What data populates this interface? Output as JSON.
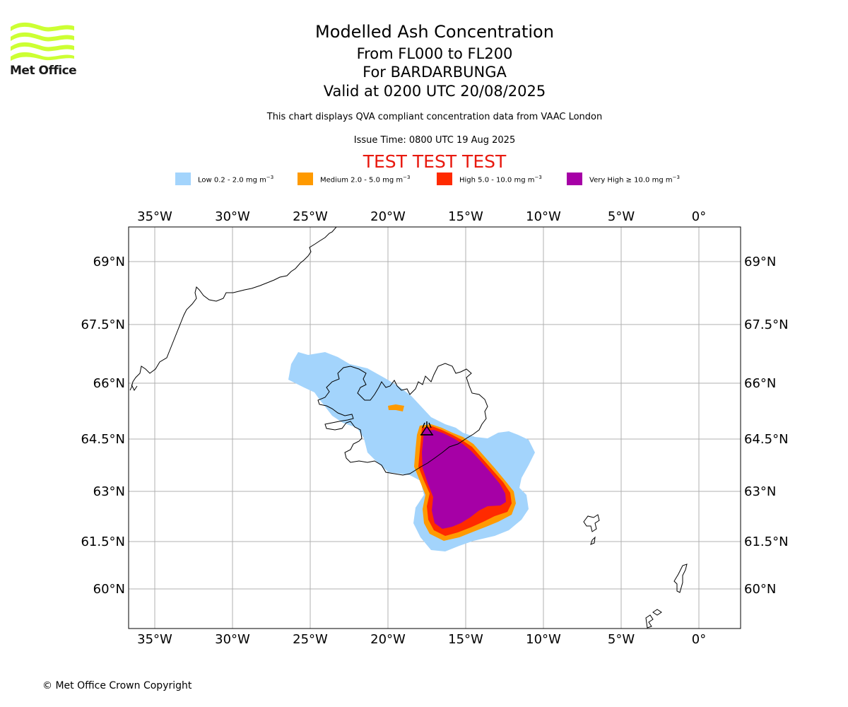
{
  "logo": {
    "text": "Met Office",
    "stripe_color": "#ccff33"
  },
  "titles": {
    "main": "Modelled Ash Concentration",
    "levels": "From FL000 to FL200",
    "volcano": "For BARDARBUNGA",
    "valid": "Valid at 0200 UTC 20/08/2025"
  },
  "subtitle": "This chart displays QVA compliant concentration data from VAAC London",
  "issue_time": "Issue Time: 0800 UTC 19 Aug 2025",
  "test_banner": "TEST TEST TEST",
  "legend": [
    {
      "label": "Low 0.2 - 2.0 mg m",
      "unit_exp": "−3",
      "color": "#a3d4fc"
    },
    {
      "label": "Medium 2.0 - 5.0 mg m",
      "unit_exp": "−3",
      "color": "#ff9a00"
    },
    {
      "label": "High 5.0 - 10.0 mg m",
      "unit_exp": "−3",
      "color": "#ff2a00"
    },
    {
      "label": "Very High  ≥  10.0 mg m",
      "unit_exp": "−3",
      "color": "#a600a6"
    }
  ],
  "map": {
    "lon_ticks": [
      "35°W",
      "30°W",
      "25°W",
      "20°W",
      "15°W",
      "10°W",
      "5°W",
      "0°"
    ],
    "lat_ticks": [
      "69°N",
      "67.5°N",
      "66°N",
      "64.5°N",
      "63°N",
      "61.5°N",
      "60°N"
    ],
    "volcano_name": "BARDARBUNGA"
  },
  "copyright": "© Met Office Crown Copyright"
}
